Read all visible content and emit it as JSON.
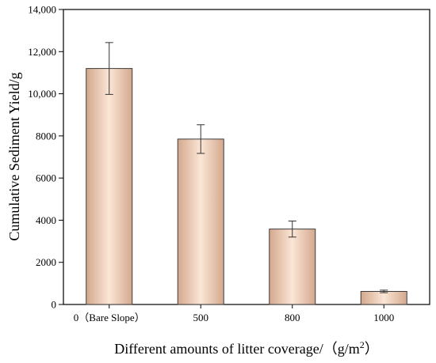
{
  "chart_data": {
    "type": "bar",
    "categories": [
      "0（Bare Slope）",
      "500",
      "800",
      "1000"
    ],
    "values": [
      11200,
      7850,
      3580,
      620
    ],
    "errors": [
      1230,
      680,
      380,
      60
    ],
    "xlabel": "Different amounts of litter coverage/（g/m",
    "xlabel_sup": "2",
    "xlabel_end": "）",
    "ylabel": "Cumulative Sediment Yield/g",
    "ylim": [
      0,
      14000
    ],
    "yticks": [
      0,
      2000,
      4000,
      6000,
      8000,
      10000,
      12000,
      14000
    ],
    "ytick_labels": [
      "0",
      "2000",
      "4000",
      "6000",
      "8000",
      "10,000",
      "12,000",
      "14,000"
    ],
    "grid": false,
    "legend": "none",
    "colors": {
      "bar_light": "#fbe6d6",
      "bar_dark": "#d4a88d",
      "bar_edge": "#3c3c3c"
    }
  }
}
